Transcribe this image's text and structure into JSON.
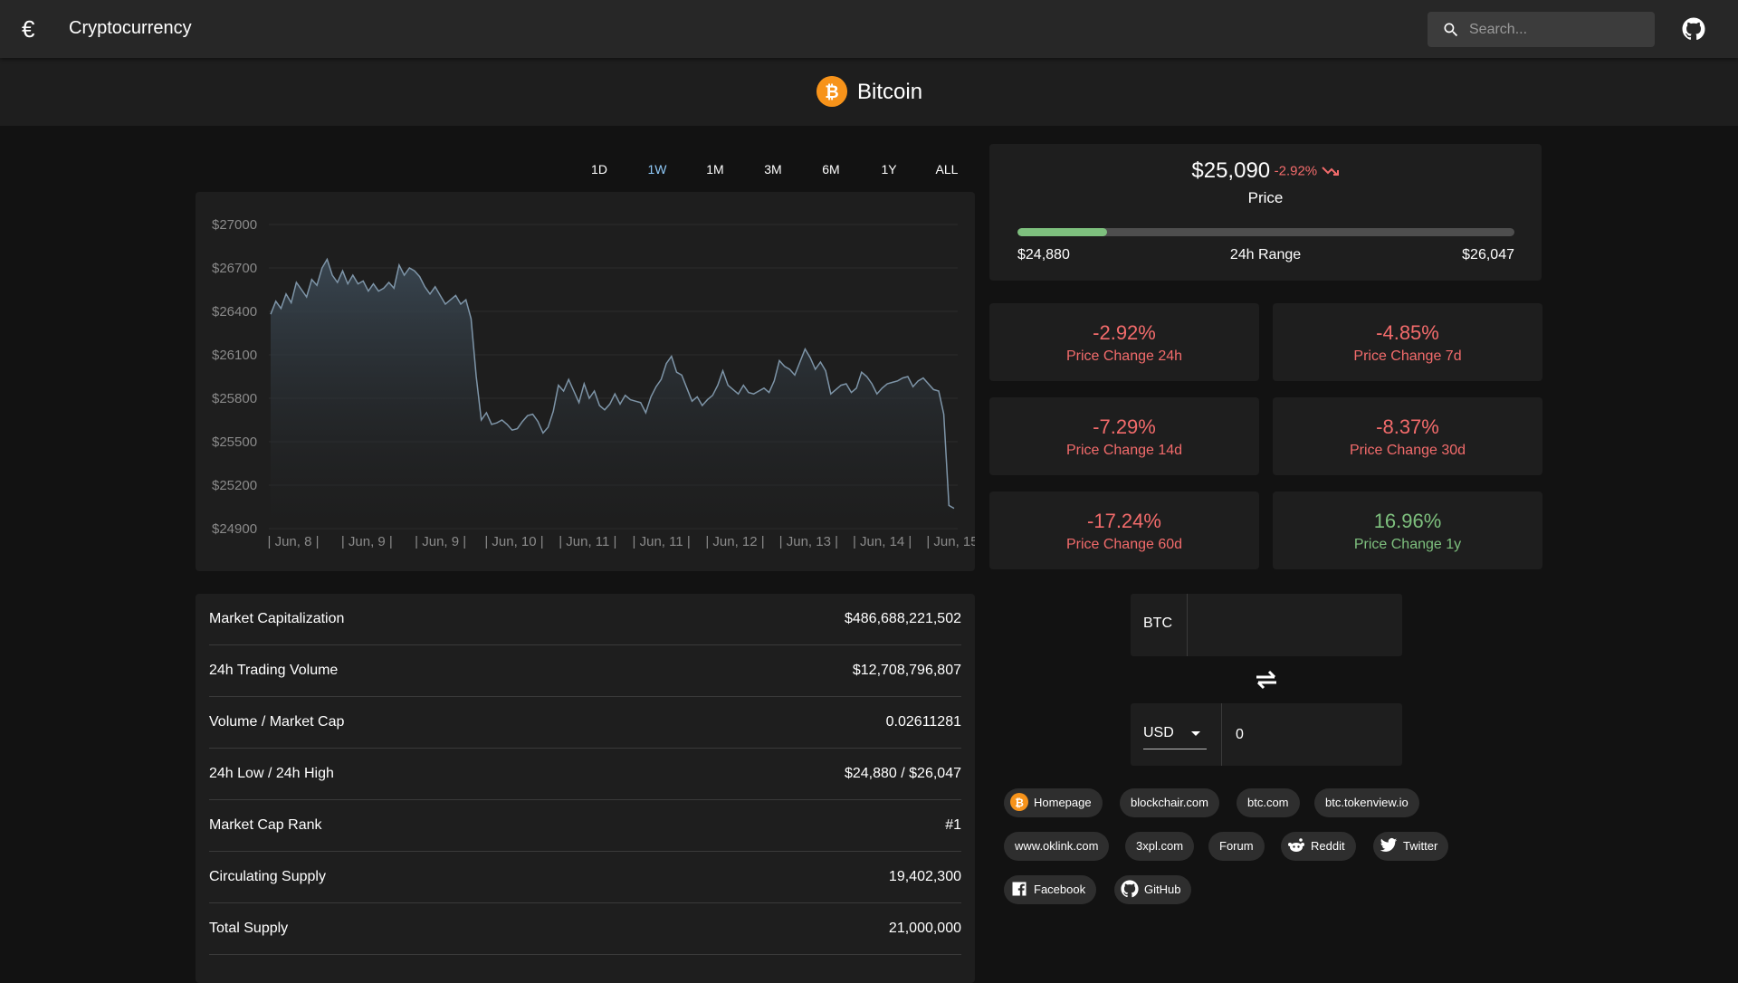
{
  "app": {
    "title": "Cryptocurrency",
    "logo_icon": "euro-icon"
  },
  "search": {
    "placeholder": "Search..."
  },
  "coin": {
    "name": "Bitcoin",
    "icon": "bitcoin-icon",
    "icon_color": "#f7931a"
  },
  "ranges": [
    "1D",
    "1W",
    "1M",
    "3M",
    "6M",
    "1Y",
    "ALL"
  ],
  "active_range": "1W",
  "chart_data": {
    "type": "area",
    "y_ticks": [
      "$27000",
      "$26700",
      "$26400",
      "$26100",
      "$25800",
      "$25500",
      "$25200",
      "$24900"
    ],
    "x_labels": [
      "| Jun, 8 |",
      "| Jun, 9 |",
      "| Jun, 9 |",
      "| Jun, 10 |",
      "| Jun, 11 |",
      "| Jun, 11 |",
      "| Jun, 12 |",
      "| Jun, 13 |",
      "| Jun, 14 |",
      "| Jun, 15 |"
    ],
    "ylim": [
      24900,
      27000
    ],
    "grid": true,
    "line_color": "#7e95a8",
    "values": [
      26380,
      26470,
      26420,
      26520,
      26460,
      26600,
      26550,
      26500,
      26620,
      26580,
      26700,
      26760,
      26650,
      26600,
      26680,
      26590,
      26650,
      26590,
      26610,
      26540,
      26590,
      26540,
      26560,
      26600,
      26560,
      26720,
      26650,
      26700,
      26680,
      26640,
      26570,
      26520,
      26570,
      26510,
      26450,
      26480,
      26510,
      26450,
      26480,
      26350,
      25950,
      25650,
      25700,
      25620,
      25630,
      25650,
      25620,
      25580,
      25590,
      25640,
      25680,
      25690,
      25640,
      25560,
      25600,
      25710,
      25890,
      25850,
      25930,
      25850,
      25770,
      25900,
      25800,
      25850,
      25750,
      25720,
      25760,
      25830,
      25760,
      25820,
      25790,
      25780,
      25770,
      25700,
      25810,
      25880,
      25930,
      26040,
      26090,
      25980,
      25960,
      25870,
      25780,
      25810,
      25750,
      25790,
      25820,
      25890,
      25990,
      25890,
      25860,
      25830,
      25890,
      25840,
      25830,
      25850,
      25870,
      25840,
      25920,
      26060,
      26020,
      26000,
      25960,
      26050,
      26140,
      26080,
      26000,
      26050,
      25990,
      25830,
      25860,
      25890,
      25900,
      25840,
      25870,
      25980,
      25950,
      25900,
      25830,
      25870,
      25900,
      25910,
      25920,
      25940,
      25950,
      25880,
      25920,
      25940,
      25900,
      25860,
      25850,
      25690,
      25060,
      25040
    ]
  },
  "price": {
    "value": "$25,090",
    "change": "-2.92%",
    "label": "Price",
    "range_label": "24h Range",
    "low": "$24,880",
    "high": "$26,047",
    "range_position": 0.18
  },
  "changes": [
    {
      "value": "-2.92%",
      "label": "Price Change 24h",
      "sign": "neg"
    },
    {
      "value": "-4.85%",
      "label": "Price Change 7d",
      "sign": "neg"
    },
    {
      "value": "-7.29%",
      "label": "Price Change 14d",
      "sign": "neg"
    },
    {
      "value": "-8.37%",
      "label": "Price Change 30d",
      "sign": "neg"
    },
    {
      "value": "-17.24%",
      "label": "Price Change 60d",
      "sign": "neg"
    },
    {
      "value": "16.96%",
      "label": "Price Change 1y",
      "sign": "pos"
    }
  ],
  "stats": [
    {
      "label": "Market Capitalization",
      "value": "$486,688,221,502"
    },
    {
      "label": "24h Trading Volume",
      "value": "$12,708,796,807"
    },
    {
      "label": "Volume / Market Cap",
      "value": "0.02611281"
    },
    {
      "label": "24h Low / 24h High",
      "value": "$24,880 / $26,047"
    },
    {
      "label": "Market Cap Rank",
      "value": "#1"
    },
    {
      "label": "Circulating Supply",
      "value": "19,402,300"
    },
    {
      "label": "Total Supply",
      "value": "21,000,000"
    }
  ],
  "converter": {
    "from_code": "BTC",
    "from_value": "",
    "to_code": "USD",
    "to_value": "0"
  },
  "links": [
    {
      "label": "Homepage",
      "icon": "bitcoin-icon"
    },
    {
      "label": "blockchair.com"
    },
    {
      "label": "btc.com"
    },
    {
      "label": "btc.tokenview.io"
    },
    {
      "label": "www.oklink.com"
    },
    {
      "label": "3xpl.com"
    },
    {
      "label": "Forum"
    },
    {
      "label": "Reddit",
      "icon": "reddit-icon"
    },
    {
      "label": "Twitter",
      "icon": "twitter-icon"
    },
    {
      "label": "Facebook",
      "icon": "facebook-icon"
    },
    {
      "label": "GitHub",
      "icon": "github-icon"
    }
  ]
}
